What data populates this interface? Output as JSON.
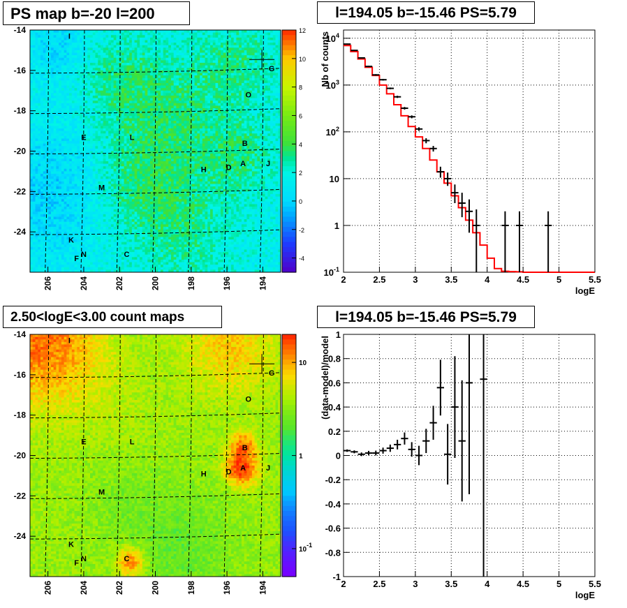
{
  "panels": {
    "ps_map_title": "PS map b=-20 l=200",
    "spectrum_title": "l=194.05 b=-15.46 PS=5.79",
    "count_map_title": "2.50<logE<3.00 count maps",
    "residual_title": "l=194.05 b=-15.46 PS=5.79"
  },
  "colors": {
    "model_line": "#ff0000",
    "data_marker": "#000000",
    "grid": "#000000"
  },
  "chart_data": [
    {
      "type": "heatmap",
      "title": "PS map b=-20 l=200",
      "xlim": [
        207,
        193
      ],
      "ylim": [
        -26,
        -14
      ],
      "x_ticks": [
        "206",
        "204",
        "202",
        "200",
        "198",
        "196",
        "194"
      ],
      "y_ticks": [
        "-14",
        "-16",
        "-18",
        "-20",
        "-22",
        "-24"
      ],
      "colorbar": {
        "min": -5,
        "max": 12,
        "ticks": [
          "12",
          "10",
          "8",
          "6",
          "4",
          "2",
          "0",
          "-2",
          "-4"
        ]
      },
      "grid": true,
      "source_labels": [
        {
          "text": "I",
          "l": 204.8,
          "b": -14.3
        },
        {
          "text": "G",
          "l": 193.5,
          "b": -15.9
        },
        {
          "text": "O",
          "l": 194.8,
          "b": -17.2
        },
        {
          "text": "E",
          "l": 204.0,
          "b": -19.3
        },
        {
          "text": "L",
          "l": 201.3,
          "b": -19.3
        },
        {
          "text": "B",
          "l": 195.0,
          "b": -19.6
        },
        {
          "text": "A",
          "l": 195.1,
          "b": -20.6
        },
        {
          "text": "J",
          "l": 193.7,
          "b": -20.6
        },
        {
          "text": "H",
          "l": 197.3,
          "b": -20.9
        },
        {
          "text": "D",
          "l": 195.9,
          "b": -20.8
        },
        {
          "text": "M",
          "l": 203.0,
          "b": -21.8
        },
        {
          "text": "K",
          "l": 204.7,
          "b": -24.4
        },
        {
          "text": "N",
          "l": 204.0,
          "b": -25.1
        },
        {
          "text": "F",
          "l": 204.4,
          "b": -25.3
        },
        {
          "text": "C",
          "l": 201.6,
          "b": -25.1
        }
      ]
    },
    {
      "type": "line",
      "title": "l=194.05 b=-15.46 PS=5.79",
      "xlabel": "logE",
      "ylabel": "Nb of counts",
      "xlim": [
        2,
        5.5
      ],
      "ylim": [
        0.1,
        15000
      ],
      "log_y": true,
      "grid": true,
      "x_ticks": [
        "2",
        "2.5",
        "3",
        "3.5",
        "4",
        "4.5",
        "5",
        "5.5"
      ],
      "y_ticks": [
        {
          "label": "10",
          "sup": "4",
          "v": 10000
        },
        {
          "label": "10",
          "sup": "3",
          "v": 1000
        },
        {
          "label": "10",
          "sup": "2",
          "v": 100
        },
        {
          "label": "10",
          "sup": "",
          "v": 10
        },
        {
          "label": "1",
          "sup": "",
          "v": 1
        },
        {
          "label": "10",
          "sup": "-1",
          "v": 0.1
        }
      ],
      "model_steps": [
        7000,
        5200,
        3600,
        2400,
        1600,
        1000,
        650,
        380,
        220,
        130,
        78,
        44,
        25,
        14,
        8,
        4.3,
        2.4,
        1.3,
        0.7,
        0.38,
        0.2,
        0.12,
        0.105,
        0.103,
        0.102,
        0.1,
        0.1,
        0.1,
        0.1,
        0.1,
        0.1,
        0.1,
        0.1,
        0.1,
        0.1
      ],
      "data_points": [
        {
          "x": 2.05,
          "y": 7500,
          "elo": 7300,
          "ehi": 7700
        },
        {
          "x": 2.15,
          "y": 5500,
          "elo": 5350,
          "ehi": 5650
        },
        {
          "x": 2.25,
          "y": 3800,
          "elo": 3700,
          "ehi": 3900
        },
        {
          "x": 2.35,
          "y": 2500,
          "elo": 2420,
          "ehi": 2580
        },
        {
          "x": 2.45,
          "y": 1650,
          "elo": 1590,
          "ehi": 1710
        },
        {
          "x": 2.55,
          "y": 1300,
          "elo": 1250,
          "ehi": 1350
        },
        {
          "x": 2.65,
          "y": 850,
          "elo": 815,
          "ehi": 885
        },
        {
          "x": 2.75,
          "y": 560,
          "elo": 530,
          "ehi": 590
        },
        {
          "x": 2.85,
          "y": 320,
          "elo": 300,
          "ehi": 340
        },
        {
          "x": 2.95,
          "y": 210,
          "elo": 195,
          "ehi": 225
        },
        {
          "x": 3.05,
          "y": 115,
          "elo": 105,
          "ehi": 125
        },
        {
          "x": 3.15,
          "y": 65,
          "elo": 57,
          "ehi": 73
        },
        {
          "x": 3.25,
          "y": 44,
          "elo": 38,
          "ehi": 50
        },
        {
          "x": 3.35,
          "y": 14,
          "elo": 10.5,
          "ehi": 18
        },
        {
          "x": 3.45,
          "y": 10,
          "elo": 7,
          "ehi": 13.5
        },
        {
          "x": 3.55,
          "y": 5,
          "elo": 3,
          "ehi": 7.5
        },
        {
          "x": 3.65,
          "y": 3,
          "elo": 1.5,
          "ehi": 5
        },
        {
          "x": 3.75,
          "y": 2,
          "elo": 0.7,
          "ehi": 3.6
        },
        {
          "x": 3.85,
          "y": 1,
          "elo": 0.1,
          "ehi": 2.2
        },
        {
          "x": 4.25,
          "y": 1,
          "elo": 0.1,
          "ehi": 2.0
        },
        {
          "x": 4.45,
          "y": 1,
          "elo": 0.1,
          "ehi": 2.0
        },
        {
          "x": 4.85,
          "y": 1,
          "elo": 0.1,
          "ehi": 2.0
        }
      ]
    },
    {
      "type": "heatmap",
      "title": "2.50<logE<3.00 count maps",
      "xlim": [
        207,
        193
      ],
      "ylim": [
        -26,
        -14
      ],
      "x_ticks": [
        "206",
        "204",
        "202",
        "200",
        "198",
        "196",
        "194"
      ],
      "y_ticks": [
        "-14",
        "-16",
        "-18",
        "-20",
        "-22",
        "-24"
      ],
      "colorbar": {
        "log": true,
        "ticks": [
          {
            "label": "10",
            "sup": "",
            "v": 10
          },
          {
            "label": "1",
            "sup": "",
            "v": 1
          },
          {
            "label": "10",
            "sup": "-1",
            "v": 0.1
          }
        ]
      },
      "grid": true,
      "source_labels": [
        {
          "text": "I",
          "l": 204.8,
          "b": -14.3
        },
        {
          "text": "G",
          "l": 193.5,
          "b": -15.9
        },
        {
          "text": "O",
          "l": 194.8,
          "b": -17.2
        },
        {
          "text": "E",
          "l": 204.0,
          "b": -19.3
        },
        {
          "text": "L",
          "l": 201.3,
          "b": -19.3
        },
        {
          "text": "B",
          "l": 195.0,
          "b": -19.6
        },
        {
          "text": "A",
          "l": 195.1,
          "b": -20.6
        },
        {
          "text": "J",
          "l": 193.7,
          "b": -20.6
        },
        {
          "text": "H",
          "l": 197.3,
          "b": -20.9
        },
        {
          "text": "D",
          "l": 195.9,
          "b": -20.8
        },
        {
          "text": "M",
          "l": 203.0,
          "b": -21.8
        },
        {
          "text": "K",
          "l": 204.7,
          "b": -24.4
        },
        {
          "text": "N",
          "l": 204.0,
          "b": -25.1
        },
        {
          "text": "F",
          "l": 204.4,
          "b": -25.3
        },
        {
          "text": "C",
          "l": 201.6,
          "b": -25.1
        }
      ]
    },
    {
      "type": "scatter",
      "title": "l=194.05 b=-15.46 PS=5.79",
      "xlabel": "logE",
      "ylabel": "(data-model)/model",
      "xlim": [
        2,
        5.5
      ],
      "ylim": [
        -1,
        1
      ],
      "grid": true,
      "x_ticks": [
        "2",
        "2.5",
        "3",
        "3.5",
        "4",
        "4.5",
        "5",
        "5.5"
      ],
      "y_ticks": [
        "1",
        "0.8",
        "0.6",
        "0.4",
        "0.2",
        "0",
        "-0.2",
        "-0.4",
        "-0.6",
        "-0.8",
        "-1"
      ],
      "data_points": [
        {
          "x": 2.05,
          "y": 0.04,
          "err": 0.01
        },
        {
          "x": 2.15,
          "y": 0.03,
          "err": 0.012
        },
        {
          "x": 2.25,
          "y": 0.01,
          "err": 0.015
        },
        {
          "x": 2.35,
          "y": 0.02,
          "err": 0.018
        },
        {
          "x": 2.45,
          "y": 0.02,
          "err": 0.02
        },
        {
          "x": 2.55,
          "y": 0.04,
          "err": 0.025
        },
        {
          "x": 2.65,
          "y": 0.06,
          "err": 0.03
        },
        {
          "x": 2.75,
          "y": 0.09,
          "err": 0.04
        },
        {
          "x": 2.85,
          "y": 0.14,
          "err": 0.05
        },
        {
          "x": 2.95,
          "y": 0.05,
          "err": 0.06
        },
        {
          "x": 3.05,
          "y": 0.0,
          "err": 0.08
        },
        {
          "x": 3.15,
          "y": 0.12,
          "err": 0.1
        },
        {
          "x": 3.25,
          "y": 0.27,
          "err": 0.14
        },
        {
          "x": 3.35,
          "y": 0.56,
          "err": 0.23
        },
        {
          "x": 3.45,
          "y": 0.01,
          "err": 0.25
        },
        {
          "x": 3.55,
          "y": 0.4,
          "err": 0.42
        },
        {
          "x": 3.65,
          "y": 0.12,
          "err": 0.5
        },
        {
          "x": 3.75,
          "y": 0.6,
          "err": 0.92
        },
        {
          "x": 3.95,
          "y": 0.63,
          "err": 1.8
        }
      ]
    }
  ]
}
